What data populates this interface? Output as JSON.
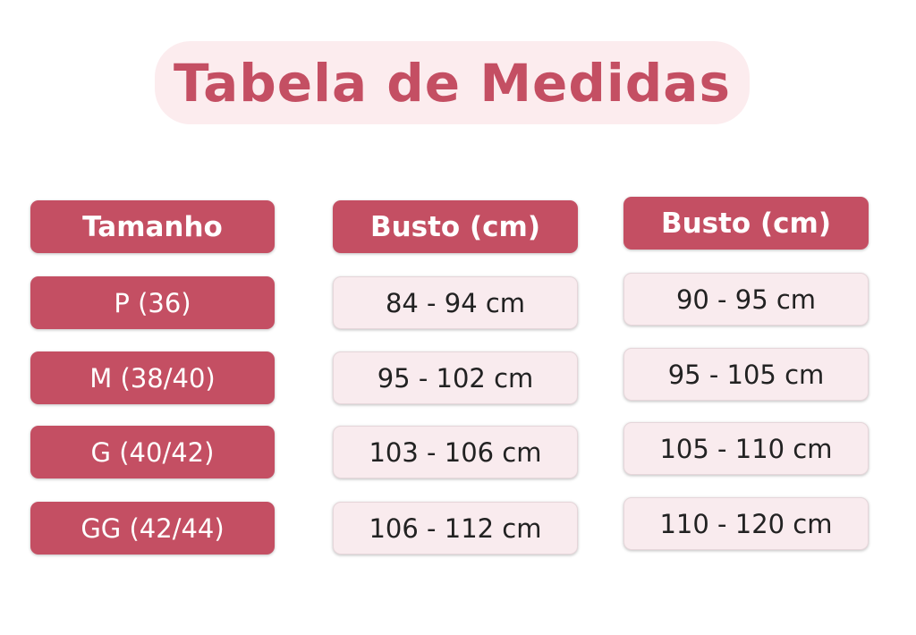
{
  "title": "Tabela de Medidas",
  "colors": {
    "accent": "#c44f63",
    "light_cell": "#f9ebee",
    "title_bg": "#fcecee"
  },
  "columns": [
    {
      "header": "Tamanho",
      "values": [
        "P (36)",
        "M (38/40)",
        "G (40/42)",
        "GG (42/44)"
      ]
    },
    {
      "header": "Busto (cm)",
      "values": [
        "84 - 94 cm",
        "95 - 102 cm",
        "103 - 106 cm",
        "106 - 112 cm"
      ]
    },
    {
      "header": "Busto (cm)",
      "values": [
        "90 - 95 cm",
        "95 - 105 cm",
        "105 - 110 cm",
        "110 - 120 cm"
      ]
    }
  ]
}
